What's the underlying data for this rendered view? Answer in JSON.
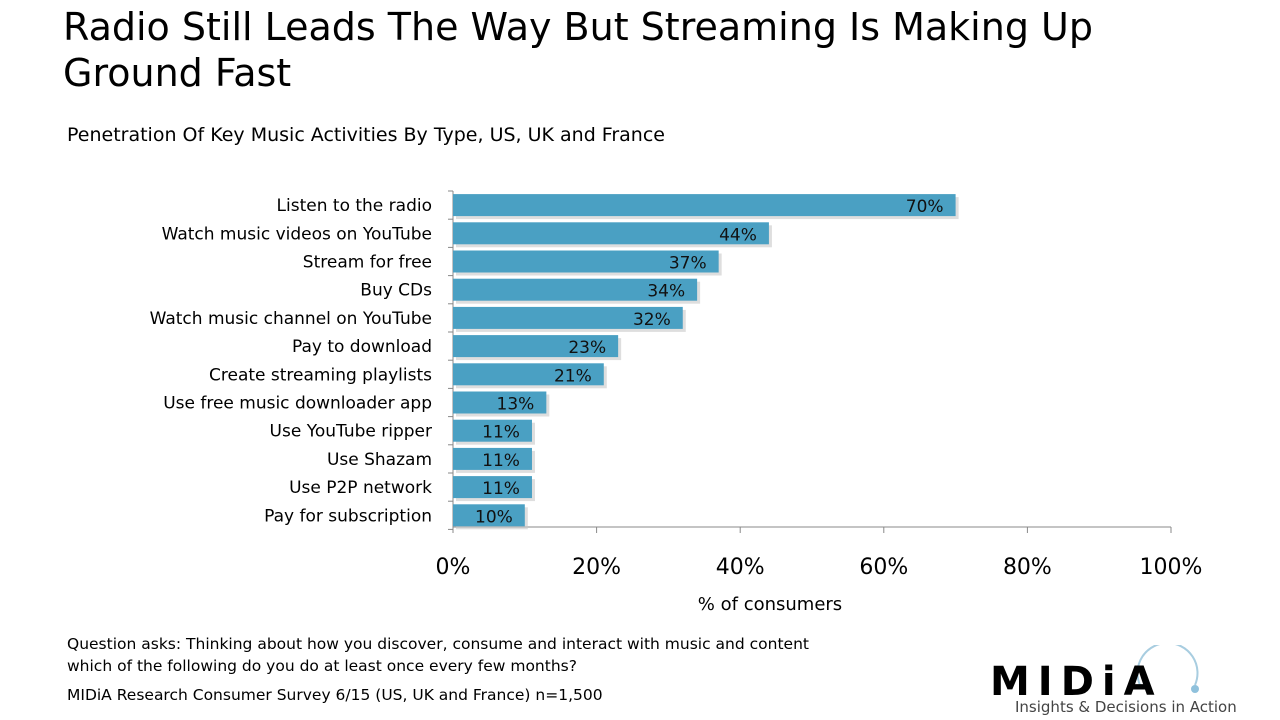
{
  "title": "Radio Still Leads The Way But Streaming Is Making Up Ground Fast",
  "subtitle": "Penetration Of Key Music Activities By Type, US, UK and France",
  "chart_data": {
    "type": "bar",
    "orientation": "horizontal",
    "categories": [
      "Listen to the radio",
      "Watch music videos on YouTube",
      "Stream for free",
      "Buy CDs",
      "Watch music channel on YouTube",
      "Pay to download",
      "Create streaming playlists",
      "Use free music downloader app",
      "Use YouTube ripper",
      "Use Shazam",
      "Use P2P network",
      "Pay for subscription"
    ],
    "values": [
      70,
      44,
      37,
      34,
      32,
      23,
      21,
      13,
      11,
      11,
      11,
      10
    ],
    "data_labels": [
      "70%",
      "44%",
      "37%",
      "34%",
      "32%",
      "23%",
      "21%",
      "13%",
      "11%",
      "11%",
      "11%",
      "10%"
    ],
    "xlabel": "% of consumers",
    "xlim": [
      0,
      100
    ],
    "xticks": [
      "0%",
      "20%",
      "40%",
      "60%",
      "80%",
      "100%"
    ],
    "grid": false,
    "bar_color": "#4aa0c3"
  },
  "notes": {
    "question_line1": "Question asks: Thinking about how you discover, consume and interact with music and content",
    "question_line2": "which of the following do you do at least once every few months?",
    "source": "MIDiA Research Consumer Survey 6/15 (US, UK and France) n=1,500"
  },
  "logo": {
    "word": "MIDiA",
    "tagline": "Insights & Decisions in Action"
  }
}
